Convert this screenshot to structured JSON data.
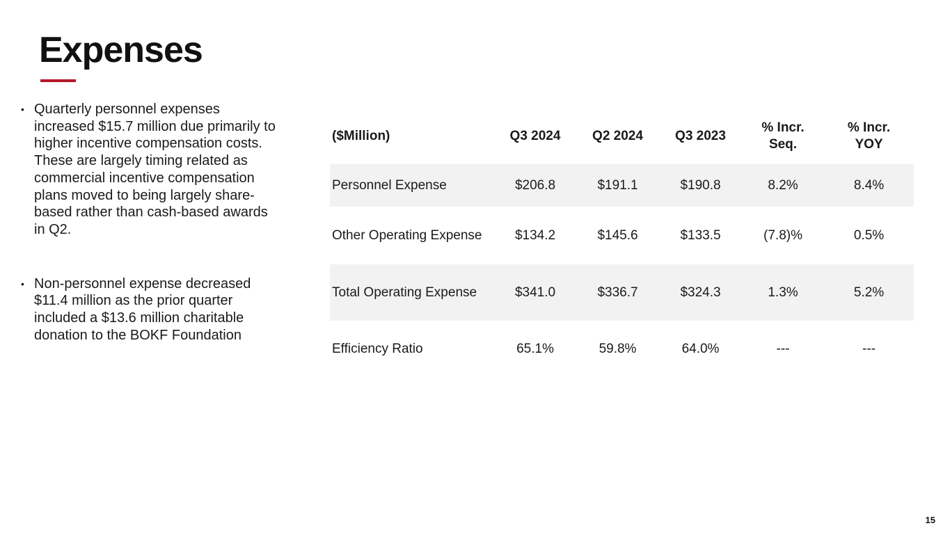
{
  "slide": {
    "title": "Expenses",
    "accent_color": "#b5182b",
    "page_number": "15"
  },
  "bullets": [
    {
      "marker": "•",
      "text": "Quarterly personnel expenses increased $15.7 million due primarily to higher incentive compensation costs. These are largely timing related as commercial incentive compensation plans moved to being largely share-based rather than cash-based awards in Q2."
    },
    {
      "marker": "•",
      "text": "Non-personnel expense decreased $11.4 million as the prior quarter included a $13.6 million charitable donation to the BOKF Foundation"
    }
  ],
  "table": {
    "headers": {
      "label": "($Million)",
      "q3_2024": "Q3 2024",
      "q2_2024": "Q2 2024",
      "q3_2023": "Q3 2023",
      "incr_seq_line1": "% Incr.",
      "incr_seq_line2": "Seq.",
      "incr_yoy_line1": "% Incr.",
      "incr_yoy_line2": "YOY"
    },
    "rows": [
      {
        "label": "Personnel Expense",
        "q3_2024": "$206.8",
        "q2_2024": "$191.1",
        "q3_2023": "$190.8",
        "incr_seq": "8.2%",
        "incr_yoy": "8.4%"
      },
      {
        "label": "Other Operating Expense",
        "q3_2024": "$134.2",
        "q2_2024": "$145.6",
        "q3_2023": "$133.5",
        "incr_seq": "(7.8)%",
        "incr_yoy": "0.5%"
      },
      {
        "label": "Total Operating Expense",
        "q3_2024": "$341.0",
        "q2_2024": "$336.7",
        "q3_2023": "$324.3",
        "incr_seq": "1.3%",
        "incr_yoy": "5.2%"
      },
      {
        "label": "Efficiency Ratio",
        "q3_2024": "65.1%",
        "q2_2024": "59.8%",
        "q3_2023": "64.0%",
        "incr_seq": "---",
        "incr_yoy": "---"
      }
    ]
  }
}
